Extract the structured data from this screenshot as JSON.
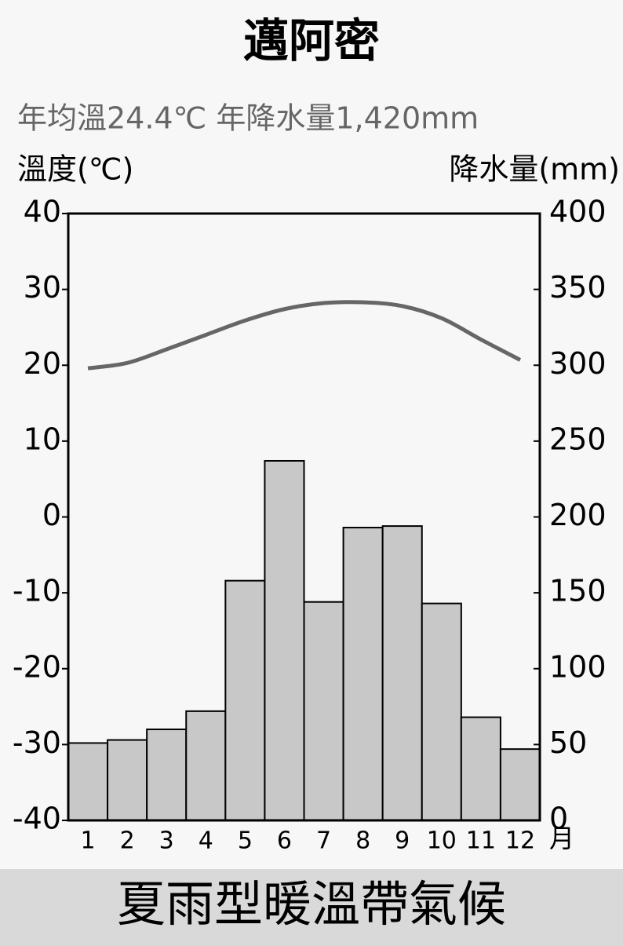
{
  "chart_data": {
    "type": "combo",
    "title": "邁阿密",
    "subtitle": "年均溫24.4℃ 年降水量1,420mm",
    "y_label": "溫度(℃)",
    "y2_label": "降水量(mm)",
    "x_unit": "月",
    "footer": "夏雨型暖溫帶氣候",
    "categories": [
      "1",
      "2",
      "3",
      "4",
      "5",
      "6",
      "7",
      "8",
      "9",
      "10",
      "11",
      "12"
    ],
    "series": [
      {
        "type": "bar",
        "axis": "y2",
        "color": "#c8c8c8",
        "values": [
          51,
          53,
          60,
          72,
          158,
          237,
          144,
          193,
          194,
          143,
          68,
          47
        ]
      },
      {
        "type": "line",
        "axis": "y",
        "color": "#666666",
        "values": [
          19.6,
          20.3,
          22.1,
          24.0,
          25.9,
          27.4,
          28.2,
          28.3,
          27.8,
          26.2,
          23.4,
          20.7
        ]
      }
    ],
    "ylim": [
      -40,
      40
    ],
    "yticks": [
      -40,
      -30,
      -20,
      -10,
      0,
      10,
      20,
      30,
      40
    ],
    "y2lim": [
      0,
      400
    ],
    "y2ticks": [
      0,
      50,
      100,
      150,
      200,
      250,
      300,
      350,
      400
    ]
  }
}
